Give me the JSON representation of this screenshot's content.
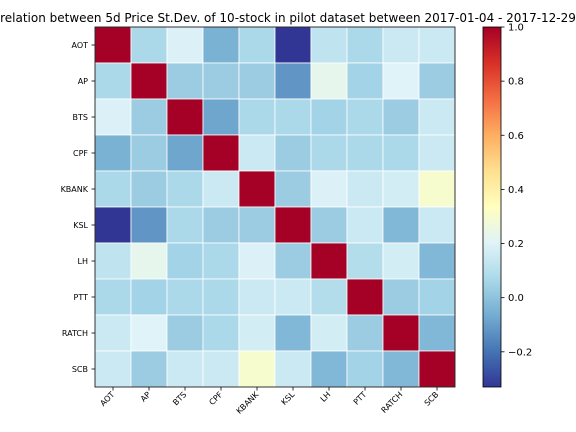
{
  "chart_data": {
    "type": "heatmap",
    "title": "relation between 5d Price St.Dev. of 10-stock in pilot dataset between 2017-01-04 - 2017-12-29",
    "x_categories": [
      "AOT",
      "AP",
      "BTS",
      "CPF",
      "KBANK",
      "KSL",
      "LH",
      "PTT",
      "RATCH",
      "SCB"
    ],
    "y_categories": [
      "AOT",
      "AP",
      "BTS",
      "CPF",
      "KBANK",
      "KSL",
      "LH",
      "PTT",
      "RATCH",
      "SCB"
    ],
    "values": [
      [
        1.0,
        0.07,
        0.19,
        -0.05,
        0.07,
        -0.33,
        0.12,
        0.07,
        0.15,
        0.15
      ],
      [
        0.07,
        1.0,
        0.03,
        0.03,
        0.03,
        -0.12,
        0.23,
        0.05,
        0.2,
        0.03
      ],
      [
        0.19,
        0.03,
        1.0,
        -0.08,
        0.07,
        0.07,
        0.05,
        0.07,
        0.03,
        0.15
      ],
      [
        -0.05,
        0.03,
        -0.08,
        1.0,
        0.15,
        0.03,
        0.07,
        0.07,
        0.07,
        0.15
      ],
      [
        0.07,
        0.03,
        0.07,
        0.15,
        1.0,
        0.03,
        0.19,
        0.15,
        0.17,
        0.3
      ],
      [
        -0.33,
        -0.12,
        0.07,
        0.03,
        0.03,
        1.0,
        0.03,
        0.15,
        -0.03,
        0.15
      ],
      [
        0.12,
        0.23,
        0.05,
        0.07,
        0.19,
        0.03,
        1.0,
        0.09,
        0.17,
        -0.03
      ],
      [
        0.07,
        0.05,
        0.07,
        0.07,
        0.15,
        0.15,
        0.09,
        1.0,
        0.03,
        0.05
      ],
      [
        0.15,
        0.2,
        0.03,
        0.07,
        0.17,
        -0.03,
        0.17,
        0.03,
        1.0,
        -0.03
      ],
      [
        0.15,
        0.03,
        0.15,
        0.15,
        0.3,
        0.15,
        -0.03,
        0.05,
        -0.03,
        1.0
      ]
    ],
    "colormap": "RdYlBu_r",
    "vmin": -0.33,
    "vmax": 1.0,
    "colorbar_ticks": [
      -0.2,
      0.0,
      0.2,
      0.4,
      0.6,
      0.8,
      1.0
    ],
    "colorbar_tick_labels": [
      "−0.2",
      "0.0",
      "0.2",
      "0.4",
      "0.6",
      "0.8",
      "1.0"
    ],
    "grid": false,
    "colors": {
      "stops": [
        "#313695",
        "#4575b4",
        "#74add1",
        "#abd9e9",
        "#e0f3f8",
        "#ffffbf",
        "#fee090",
        "#fdae61",
        "#f46d43",
        "#d73027",
        "#a50026"
      ]
    }
  }
}
